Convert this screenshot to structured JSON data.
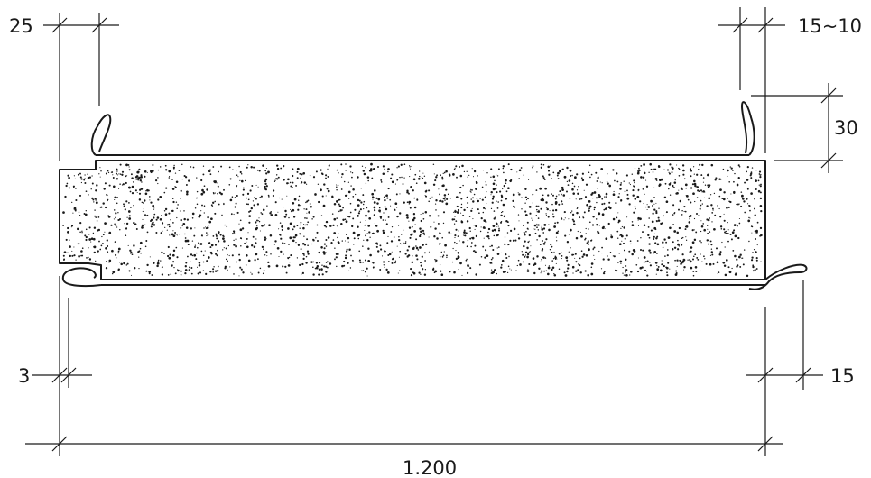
{
  "labels": {
    "top_left_width": "25",
    "top_right_width": "15~10",
    "right_height": "30",
    "bottom_left_width": "3",
    "bottom_right_width": "15",
    "total_width": "1.200"
  },
  "colors": {
    "line": "#1a1a1a",
    "background": "#ffffff",
    "insulation_dots": "#1a1a1a"
  }
}
